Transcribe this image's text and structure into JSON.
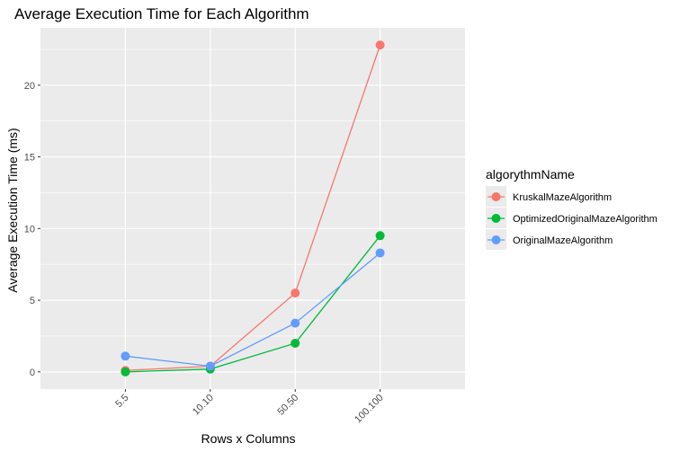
{
  "chart_data": {
    "type": "line",
    "title": "Average Execution Time for Each Algorithm",
    "xlabel": "Rows x Columns",
    "ylabel": "Average Execution Time (ms)",
    "categories": [
      "5.5",
      "10.10",
      "50.50",
      "100.100"
    ],
    "ylim": [
      -1.2,
      24
    ],
    "yticks": [
      0,
      5,
      10,
      15,
      20
    ],
    "grid": true,
    "legend_position": "right",
    "legend_title": "algorythmName",
    "series": [
      {
        "name": "KruskalMazeAlgorithm",
        "color": "#F8766D",
        "values": [
          0.1,
          0.4,
          5.5,
          22.8
        ]
      },
      {
        "name": "OptimizedOriginalMazeAlgorithm",
        "color": "#00BA38",
        "values": [
          0.0,
          0.2,
          2.0,
          9.5
        ]
      },
      {
        "name": "OriginalMazeAlgorithm",
        "color": "#619CFF",
        "values": [
          1.1,
          0.4,
          3.4,
          8.3
        ]
      }
    ],
    "panel_color": "#EBEBEB",
    "grid_color": "#FFFFFF"
  }
}
